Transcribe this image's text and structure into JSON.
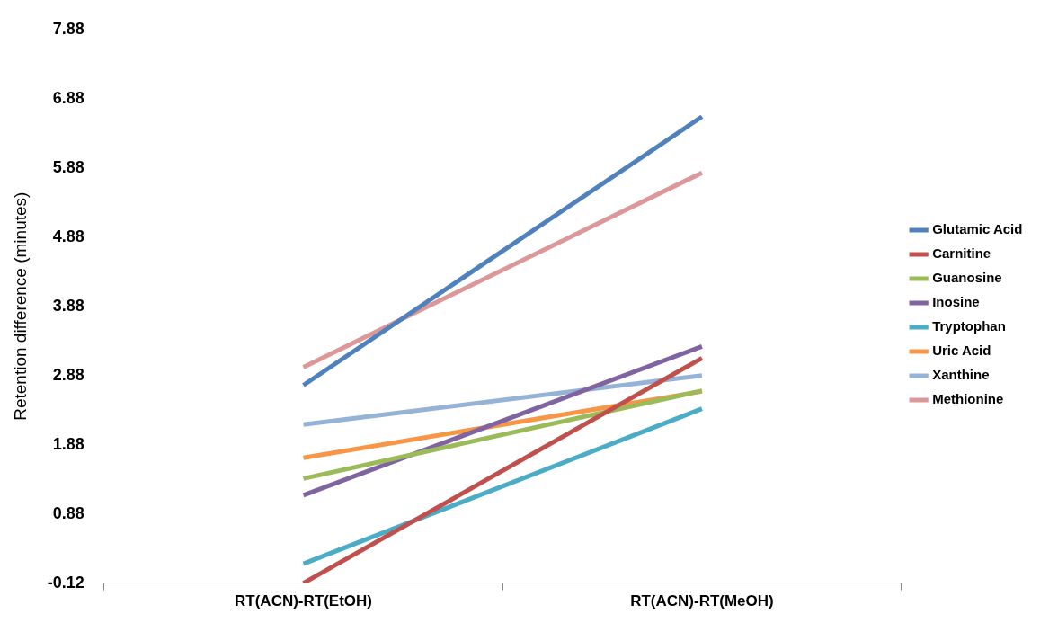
{
  "chart_data": {
    "type": "line",
    "ylabel": "Retention difference (minutes)",
    "categories": [
      "RT(ACN)-RT(EtOH)",
      "RT(ACN)-RT(MeOH)"
    ],
    "series": [
      {
        "name": "Glutamic Acid",
        "color": "#4f81bd",
        "values": [
          2.74,
          6.62
        ]
      },
      {
        "name": "Carnitine",
        "color": "#c0504d",
        "values": [
          -0.12,
          3.13
        ]
      },
      {
        "name": "Guanosine",
        "color": "#9bbb59",
        "values": [
          1.39,
          2.66
        ]
      },
      {
        "name": "Inosine",
        "color": "#8064a2",
        "values": [
          1.15,
          3.3
        ]
      },
      {
        "name": "Tryptophan",
        "color": "#4bacc6",
        "values": [
          0.16,
          2.4
        ]
      },
      {
        "name": "Uric Acid",
        "color": "#f79646",
        "values": [
          1.69,
          2.65
        ]
      },
      {
        "name": "Xanthine",
        "color": "#95b3d7",
        "values": [
          2.17,
          2.88
        ]
      },
      {
        "name": "Methionine",
        "color": "#dc9898",
        "values": [
          3.0,
          5.81
        ]
      }
    ],
    "ylim": [
      -0.12,
      7.88
    ],
    "yticks": [
      -0.12,
      0.88,
      1.88,
      2.88,
      3.88,
      4.88,
      5.88,
      6.88,
      7.88
    ],
    "grid": false,
    "legend": "right",
    "marker": "none",
    "line_style": "solid"
  }
}
